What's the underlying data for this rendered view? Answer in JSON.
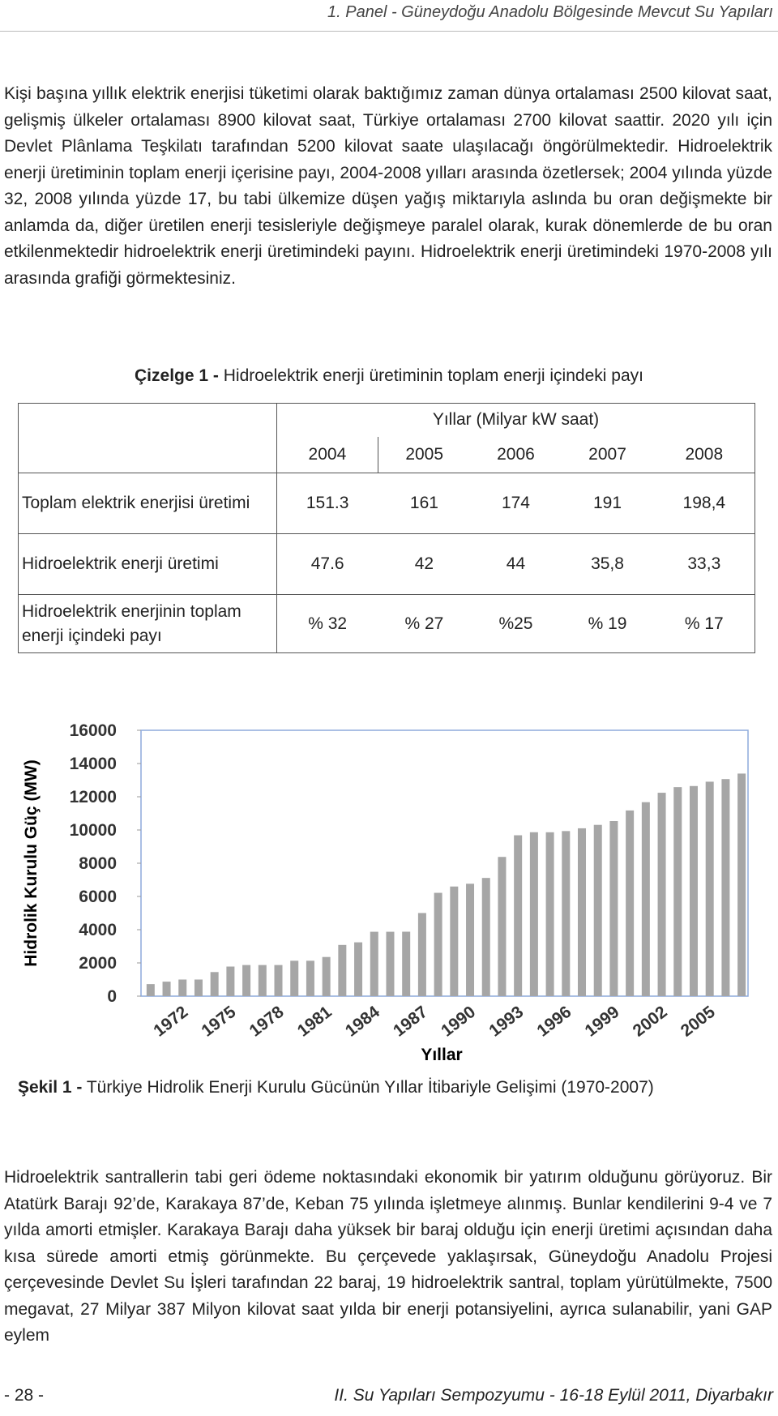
{
  "header": {
    "title": "1. Panel - Güneydoğu Anadolu Bölgesinde Mevcut Su Yapıları"
  },
  "paragraphs": [
    "Kişi başına yıllık elektrik enerjisi tüketimi olarak baktığımız zaman dünya ortalaması 2500 kilovat saat, gelişmiş ülkeler ortalaması 8900 kilovat saat, Türkiye ortalaması 2700 kilovat saattir. 2020 yılı için Devlet Plânlama Teşkilatı tarafından 5200 kilovat saate ulaşılacağı öngörülmektedir. Hidroelektrik enerji üretiminin toplam enerji içerisine payı, 2004-2008 yılları arasında özetlersek; 2004 yılında yüzde 32, 2008 yılında yüzde 17, bu tabi ülkemize düşen yağış miktarıyla aslında bu oran değişmekte bir anlamda da, diğer üretilen enerji tesisleriyle değişmeye paralel olarak, kurak dönemlerde de bu oran etkilenmektedir hidroelektrik enerji üretimindeki payını. Hidroelektrik enerji üretimindeki 1970-2008 yılı arasında grafiği görmektesiniz.",
    "Hidroelektrik santrallerin tabi geri ödeme noktasındaki ekonomik bir yatırım olduğunu görüyoruz. Bir Atatürk Barajı 92’de, Karakaya 87’de, Keban 75 yılında işletmeye alınmış. Bunlar kendilerini 9-4 ve 7 yılda amorti etmişler. Karakaya Barajı daha yüksek bir baraj olduğu için enerji üretimi açısından daha kısa sürede amorti etmiş görünmekte. Bu çerçevede yaklaşırsak, Güneydoğu Anadolu Projesi çerçevesinde Devlet Su İşleri tarafından 22 baraj, 19 hidroelektrik santral, toplam yürütülmekte, 7500 megavat, 27 Milyar 387 Milyon kilovat saat yılda bir enerji potansiyelini, ayrıca sulanabilir, yani GAP eylem"
  ],
  "table_caption": {
    "label": "Çizelge 1 -",
    "text": "Hidroelektrik enerji üretiminin toplam enerji içindeki payı"
  },
  "table": {
    "header": "Yıllar (Milyar kW saat)",
    "columns": [
      "2004",
      "2005",
      "2006",
      "2007",
      "2008"
    ],
    "rows": [
      {
        "label": "Toplam elektrik enerjisi üretimi",
        "values": [
          "151.3",
          "161",
          "174",
          "191",
          "198,4"
        ]
      },
      {
        "label": "Hidroelektrik enerji üretimi",
        "values": [
          "47.6",
          "42",
          "44",
          "35,8",
          "33,3"
        ]
      },
      {
        "label": "Hidroelektrik enerjinin toplam enerji içindeki payı",
        "values": [
          "% 32",
          "% 27",
          "%25",
          "% 19",
          "% 17"
        ]
      }
    ]
  },
  "chart_data": {
    "type": "bar",
    "y_label": "Hidrolik Kurulu Güç (MW)",
    "x_label": "Yıllar",
    "categories": [
      null,
      null,
      "1972",
      null,
      null,
      "1975",
      null,
      null,
      "1978",
      null,
      null,
      "1981",
      null,
      null,
      "1984",
      null,
      null,
      "1987",
      null,
      null,
      "1990",
      null,
      null,
      "1993",
      null,
      null,
      "1996",
      null,
      null,
      "1999",
      null,
      null,
      "2002",
      null,
      null,
      "2005",
      null,
      null
    ],
    "values": [
      725,
      872,
      1000,
      1000,
      1449,
      1780,
      1873,
      1873,
      1873,
      2131,
      2131,
      2356,
      3082,
      3239,
      3875,
      3875,
      3878,
      5003,
      6218,
      6598,
      6764,
      7114,
      8379,
      9682,
      9865,
      9863,
      9935,
      10102,
      10307,
      10537,
      11175,
      11673,
      12241,
      12579,
      12645,
      12906,
      13063,
      13395
    ],
    "color": "#a6a6a6",
    "ylim": [
      0,
      16000
    ],
    "yticks": [
      0,
      2000,
      4000,
      6000,
      8000,
      10000,
      12000,
      14000,
      16000
    ],
    "grid": false
  },
  "figure_caption": {
    "label": "Şekil 1 -",
    "text": "Türkiye Hidrolik Enerji Kurulu Gücünün Yıllar İtibariyle Gelişimi (1970-2007)"
  },
  "footer": {
    "page": "- 28 -",
    "event": "II. Su Yapıları Sempozyumu - 16-18 Eylül 2011, Diyarbakır"
  }
}
